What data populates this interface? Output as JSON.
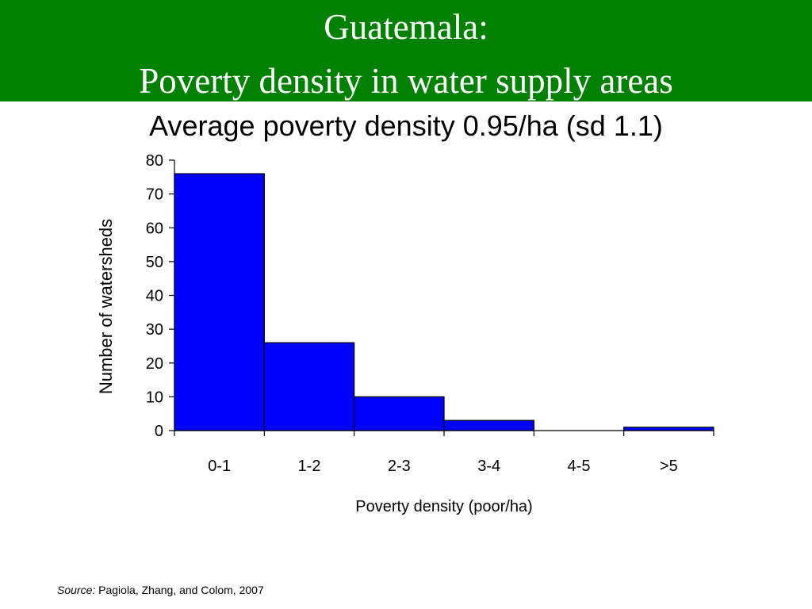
{
  "slide": {
    "title_line1": "Guatemala:",
    "title_line2": "Poverty density in water supply areas",
    "subtitle": "Average poverty density 0.95/ha (sd 1.1)",
    "banner_color": "#008000"
  },
  "source": {
    "label": "Source:",
    "text": "Pagiola, Zhang, and Colom, 2007"
  },
  "chart_data": {
    "type": "bar",
    "categories": [
      "0-1",
      "1-2",
      "2-3",
      "3-4",
      "4-5",
      ">5"
    ],
    "values": [
      76,
      26,
      10,
      3,
      0,
      1
    ],
    "xlabel": "Poverty density (poor/ha)",
    "ylabel": "Number of watersheds",
    "ylim": [
      0,
      80
    ],
    "yticks": [
      0,
      10,
      20,
      30,
      40,
      50,
      60,
      70,
      80
    ],
    "bar_color": "#0000FF",
    "grid": false
  }
}
